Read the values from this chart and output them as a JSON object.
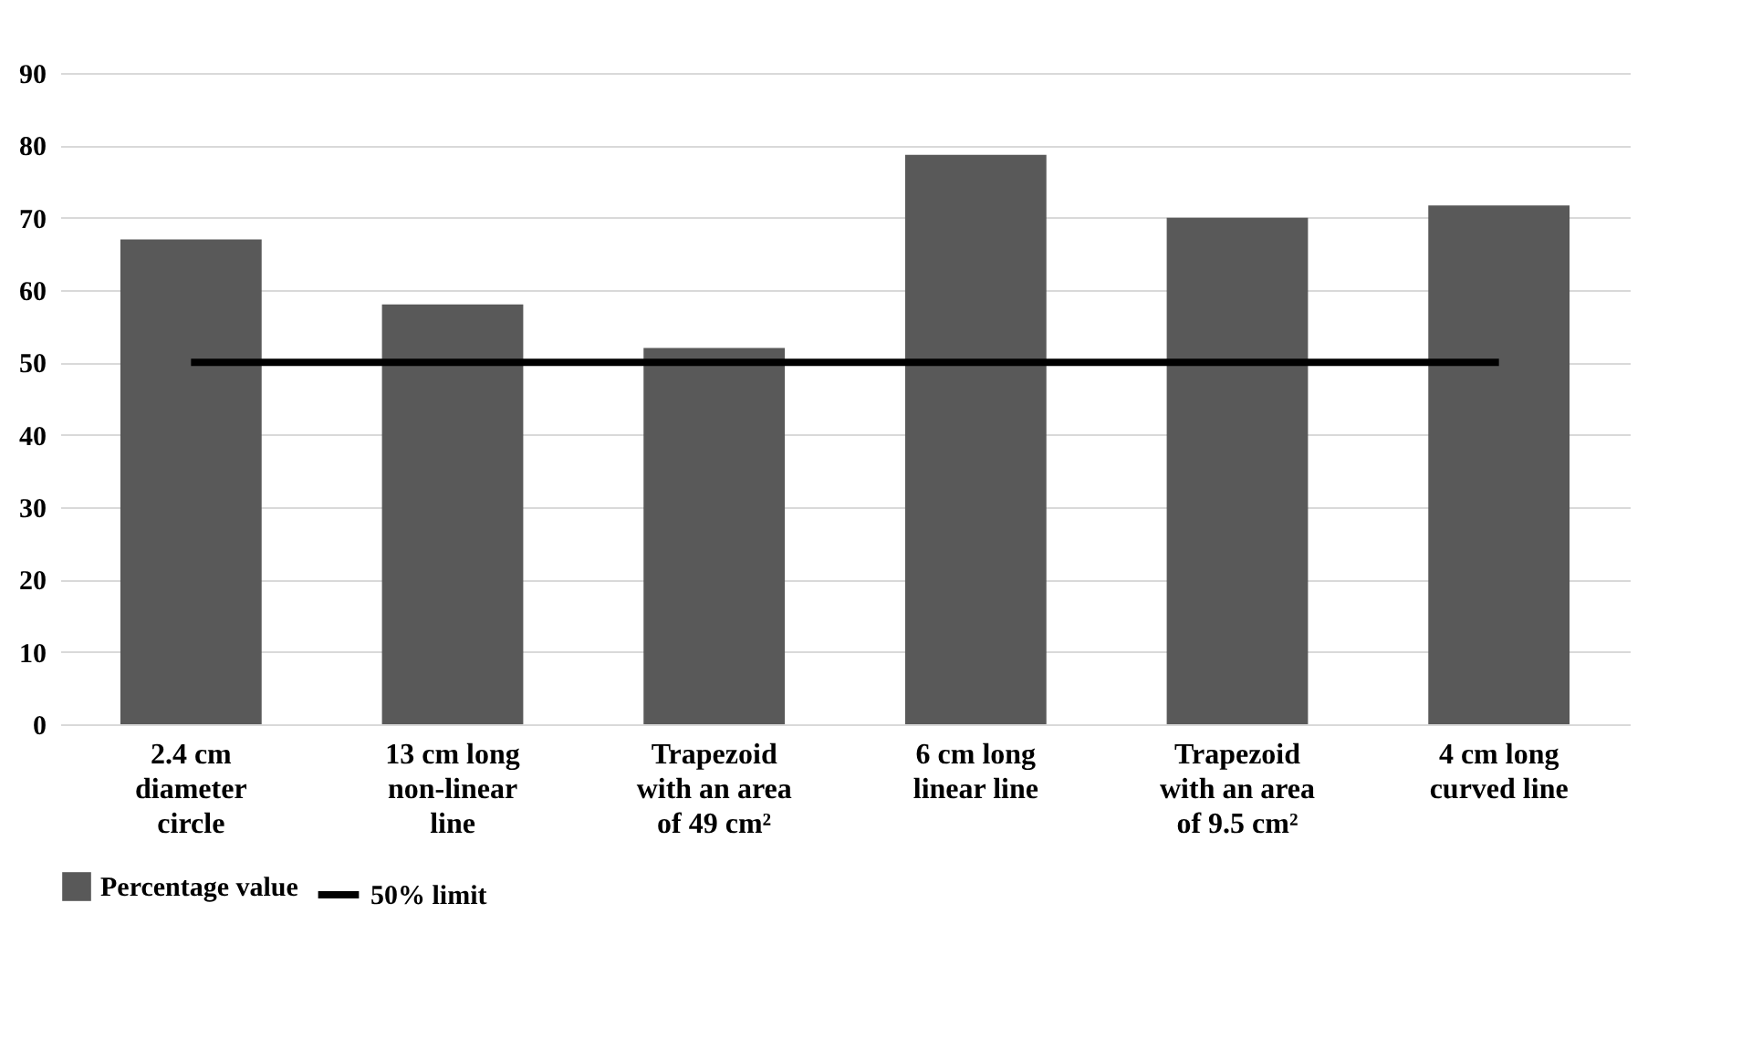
{
  "chart_data": {
    "type": "bar",
    "categories": [
      "2.4 cm diameter circle",
      "13 cm long non-linear line",
      "Trapezoid with an area of 49 cm²",
      "6 cm long linear line",
      "Trapezoid with an area of 9.5 cm²",
      "4 cm long curved line"
    ],
    "series": [
      {
        "name": "Percentage value",
        "color": "#595959",
        "values": [
          67,
          58,
          52,
          78.7,
          70,
          71.7
        ]
      },
      {
        "name": "50% limit",
        "type": "line",
        "color": "#000000",
        "values": [
          50,
          50,
          50,
          50,
          50,
          50
        ]
      }
    ],
    "ylim": [
      0,
      90
    ],
    "yticks": [
      0,
      10,
      20,
      30,
      40,
      50,
      60,
      70,
      80,
      90
    ],
    "grid": "y",
    "legend": "bottom"
  }
}
